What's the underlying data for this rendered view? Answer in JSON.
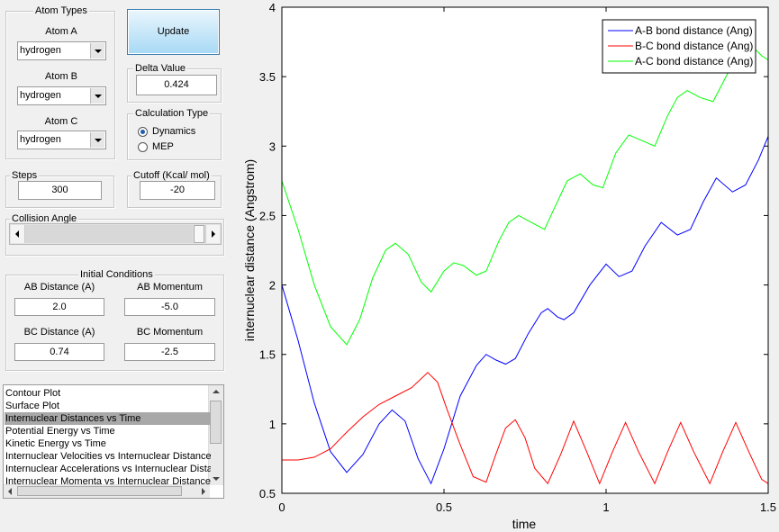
{
  "atom_types": {
    "title": "Atom Types",
    "atom_a_label": "Atom A",
    "atom_a": "hydrogen",
    "atom_b_label": "Atom B",
    "atom_b": "hydrogen",
    "atom_c_label": "Atom C",
    "atom_c": "hydrogen"
  },
  "update_button": "Update",
  "delta_value": {
    "label": "Delta Value",
    "value": "0.424"
  },
  "calculation_type": {
    "label": "Calculation Type",
    "options": [
      "Dynamics",
      "MEP"
    ],
    "selected": 0
  },
  "steps": {
    "label": "Steps",
    "value": "300"
  },
  "cutoff": {
    "label": "Cutoff (Kcal/ mol)",
    "value": "-20"
  },
  "collision_angle": "Collision Angle",
  "initial_conditions": {
    "title": "Initial Conditions",
    "fields": [
      {
        "label": "AB Distance (A)",
        "value": "2.0"
      },
      {
        "label": "AB Momentum",
        "value": "-5.0"
      },
      {
        "label": "BC Distance (A)",
        "value": "0.74"
      },
      {
        "label": "BC Momentum",
        "value": "-2.5"
      }
    ]
  },
  "plot_list": {
    "items": [
      "Contour Plot",
      "Surface Plot",
      "Internuclear Distances vs Time",
      "Potential Energy vs Time",
      "Kinetic Energy vs Time",
      "Internuclear Velocities vs Internuclear Distance",
      "Internuclear Accelerations vs Internuclear Dista",
      "Internuclear Momenta vs Internuclear Distance"
    ],
    "selected": 2
  },
  "chart_data": {
    "type": "line",
    "xlabel": "time",
    "ylabel": "internuclear distance (Angstrom)",
    "xlim": [
      0,
      1.5
    ],
    "xticks": [
      0,
      0.5,
      1,
      1.5
    ],
    "ylim": [
      0.5,
      4
    ],
    "yticks": [
      0.5,
      1,
      1.5,
      2,
      2.5,
      3,
      3.5,
      4
    ],
    "legend": "upper right",
    "series": [
      {
        "name": "A-B bond distance (Ang)",
        "color": "#0000ff",
        "x": [
          0,
          0.05,
          0.1,
          0.15,
          0.2,
          0.25,
          0.3,
          0.34,
          0.38,
          0.42,
          0.46,
          0.5,
          0.55,
          0.6,
          0.63,
          0.66,
          0.69,
          0.72,
          0.76,
          0.8,
          0.82,
          0.85,
          0.87,
          0.9,
          0.95,
          1.0,
          1.04,
          1.08,
          1.12,
          1.17,
          1.22,
          1.26,
          1.3,
          1.34,
          1.39,
          1.43,
          1.47,
          1.5
        ],
        "values": [
          2.0,
          1.6,
          1.15,
          0.8,
          0.65,
          0.78,
          1.0,
          1.1,
          1.02,
          0.75,
          0.57,
          0.82,
          1.2,
          1.42,
          1.5,
          1.46,
          1.43,
          1.47,
          1.65,
          1.8,
          1.83,
          1.77,
          1.75,
          1.8,
          2.0,
          2.15,
          2.06,
          2.1,
          2.28,
          2.45,
          2.36,
          2.4,
          2.6,
          2.77,
          2.67,
          2.72,
          2.9,
          3.07
        ]
      },
      {
        "name": "B-C bond distance (Ang)",
        "color": "#ff0000",
        "x": [
          0,
          0.05,
          0.1,
          0.15,
          0.2,
          0.25,
          0.3,
          0.35,
          0.4,
          0.45,
          0.48,
          0.51,
          0.55,
          0.59,
          0.63,
          0.66,
          0.69,
          0.72,
          0.75,
          0.78,
          0.82,
          0.86,
          0.9,
          0.94,
          0.98,
          1.02,
          1.06,
          1.1,
          1.15,
          1.19,
          1.23,
          1.27,
          1.32,
          1.36,
          1.4,
          1.44,
          1.48,
          1.5
        ],
        "values": [
          0.74,
          0.74,
          0.76,
          0.82,
          0.94,
          1.05,
          1.14,
          1.2,
          1.26,
          1.37,
          1.3,
          1.1,
          0.85,
          0.62,
          0.58,
          0.78,
          0.97,
          1.03,
          0.9,
          0.68,
          0.57,
          0.78,
          1.02,
          0.8,
          0.57,
          0.8,
          1.01,
          0.8,
          0.57,
          0.8,
          1.01,
          0.8,
          0.57,
          0.8,
          1.01,
          0.8,
          0.6,
          0.57
        ]
      },
      {
        "name": "A-C bond distance (Ang)",
        "color": "#00ff00",
        "x": [
          0,
          0.05,
          0.1,
          0.15,
          0.2,
          0.24,
          0.28,
          0.32,
          0.35,
          0.39,
          0.43,
          0.46,
          0.5,
          0.53,
          0.56,
          0.6,
          0.63,
          0.67,
          0.7,
          0.73,
          0.77,
          0.81,
          0.84,
          0.88,
          0.92,
          0.96,
          0.99,
          1.03,
          1.07,
          1.1,
          1.15,
          1.19,
          1.22,
          1.25,
          1.29,
          1.33,
          1.37,
          1.41,
          1.45,
          1.48,
          1.5
        ],
        "values": [
          2.75,
          2.4,
          2.0,
          1.7,
          1.57,
          1.75,
          2.05,
          2.25,
          2.3,
          2.22,
          2.02,
          1.95,
          2.1,
          2.16,
          2.14,
          2.07,
          2.1,
          2.32,
          2.45,
          2.5,
          2.45,
          2.4,
          2.55,
          2.75,
          2.8,
          2.72,
          2.7,
          2.95,
          3.08,
          3.05,
          3.0,
          3.22,
          3.35,
          3.4,
          3.35,
          3.32,
          3.5,
          3.68,
          3.72,
          3.65,
          3.62
        ]
      }
    ]
  }
}
